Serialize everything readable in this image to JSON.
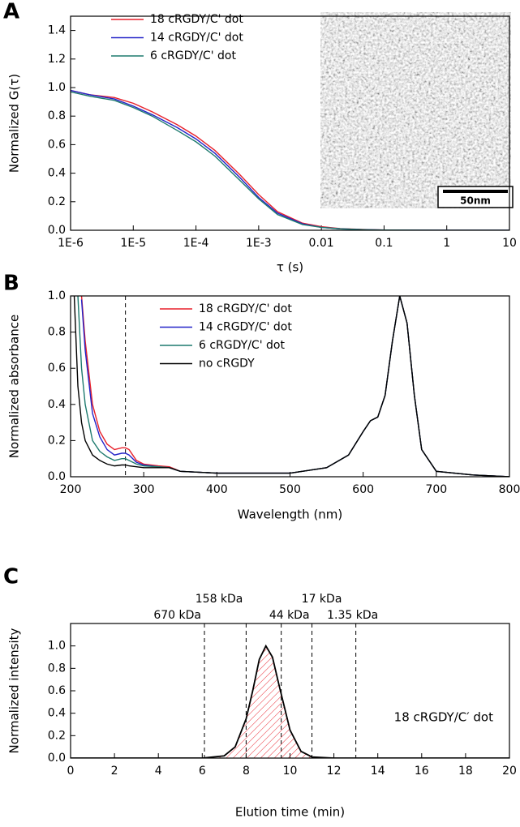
{
  "chart_data": [
    {
      "type": "line",
      "panel_label": "A",
      "ylabel": "Normalized G(τ)",
      "xlabel": "τ (s)",
      "xscale": "log",
      "xlim": [
        1e-06,
        10
      ],
      "xticks": [
        {
          "value": 1e-06,
          "label": "1E-6"
        },
        {
          "value": 1e-05,
          "label": "1E-5"
        },
        {
          "value": 0.0001,
          "label": "1E-4"
        },
        {
          "value": 0.001,
          "label": "1E-3"
        },
        0.01,
        0.1,
        1,
        10
      ],
      "ylim": [
        0,
        1.5
      ],
      "yticks": [
        {
          "value": 0,
          "label": "0.0"
        },
        0.2,
        0.4,
        0.6,
        0.8,
        {
          "value": 1,
          "label": "1.0"
        },
        1.2,
        1.4
      ],
      "legend": "upper left",
      "inset_scale_label": "50nm",
      "x": [
        1e-06,
        2e-06,
        5e-06,
        1e-05,
        2e-05,
        5e-05,
        0.0001,
        0.0002,
        0.0005,
        0.001,
        0.002,
        0.005,
        0.01,
        0.02,
        0.05,
        0.1,
        1,
        10
      ],
      "series": [
        {
          "name": "18 cRGDY/C' dot",
          "color": "#e8212b",
          "values": [
            0.98,
            0.95,
            0.93,
            0.89,
            0.83,
            0.74,
            0.66,
            0.56,
            0.39,
            0.25,
            0.13,
            0.05,
            0.025,
            0.012,
            0.005,
            0.002,
            0,
            0
          ]
        },
        {
          "name": "14 cRGDY/C' dot",
          "color": "#2323c8",
          "values": [
            0.98,
            0.95,
            0.92,
            0.87,
            0.81,
            0.72,
            0.64,
            0.54,
            0.37,
            0.23,
            0.12,
            0.045,
            0.02,
            0.01,
            0.004,
            0.002,
            0,
            0
          ]
        },
        {
          "name": "6 cRGDY/C' dot",
          "color": "#1d7a6e",
          "values": [
            0.97,
            0.94,
            0.91,
            0.86,
            0.8,
            0.7,
            0.62,
            0.52,
            0.35,
            0.22,
            0.11,
            0.04,
            0.02,
            0.01,
            0.004,
            0.002,
            0,
            0
          ]
        }
      ]
    },
    {
      "type": "line",
      "panel_label": "B",
      "ylabel": "Normalized absorbance",
      "xlabel": "Wavelength (nm)",
      "xlim": [
        200,
        800
      ],
      "xticks": [
        200,
        300,
        400,
        500,
        600,
        700,
        800
      ],
      "ylim": [
        0,
        1
      ],
      "yticks": [
        {
          "value": 0,
          "label": "0.0"
        },
        0.2,
        0.4,
        0.6,
        0.8,
        {
          "value": 1,
          "label": "1.0"
        }
      ],
      "legend": "upper center",
      "reference_lines": [
        {
          "x": 275
        }
      ],
      "x": [
        205,
        210,
        215,
        220,
        230,
        240,
        250,
        260,
        270,
        275,
        280,
        290,
        300,
        320,
        335,
        350,
        400,
        450,
        500,
        550,
        580,
        600,
        610,
        620,
        630,
        640,
        650,
        660,
        670,
        680,
        700,
        750,
        800
      ],
      "series": [
        {
          "name": "18 cRGDY/C' dot",
          "color": "#e8212b",
          "values": [
            null,
            null,
            1.0,
            0.75,
            0.4,
            0.25,
            0.18,
            0.15,
            0.16,
            0.16,
            0.15,
            0.09,
            0.07,
            0.06,
            0.055,
            0.03,
            0.02,
            0.02,
            0.02,
            0.05,
            0.12,
            0.25,
            0.31,
            0.33,
            0.45,
            0.75,
            1.0,
            0.85,
            0.45,
            0.15,
            0.03,
            0.01,
            0
          ]
        },
        {
          "name": "14 cRGDY/C' dot",
          "color": "#2323c8",
          "values": [
            null,
            null,
            0.98,
            0.7,
            0.35,
            0.22,
            0.15,
            0.12,
            0.13,
            0.13,
            0.12,
            0.08,
            0.065,
            0.055,
            0.05,
            0.03,
            0.02,
            0.02,
            0.02,
            0.05,
            0.12,
            0.25,
            0.31,
            0.33,
            0.45,
            0.75,
            1.0,
            0.85,
            0.45,
            0.15,
            0.03,
            0.01,
            0
          ]
        },
        {
          "name": "6 cRGDY/C' dot",
          "color": "#1d7a6e",
          "values": [
            null,
            1.0,
            0.6,
            0.4,
            0.2,
            0.14,
            0.11,
            0.09,
            0.1,
            0.1,
            0.09,
            0.07,
            0.06,
            0.055,
            0.05,
            0.03,
            0.02,
            0.02,
            0.02,
            0.05,
            0.12,
            0.25,
            0.31,
            0.33,
            0.45,
            0.75,
            1.0,
            0.85,
            0.45,
            0.15,
            0.03,
            0.01,
            0
          ]
        },
        {
          "name": "no cRGDY",
          "color": "#000000",
          "values": [
            1.0,
            0.5,
            0.3,
            0.2,
            0.12,
            0.09,
            0.07,
            0.06,
            0.065,
            0.065,
            0.06,
            0.055,
            0.05,
            0.05,
            0.05,
            0.03,
            0.02,
            0.02,
            0.02,
            0.05,
            0.12,
            0.25,
            0.31,
            0.33,
            0.45,
            0.75,
            1.0,
            0.85,
            0.45,
            0.15,
            0.03,
            0.01,
            0
          ]
        }
      ]
    },
    {
      "type": "area",
      "panel_label": "C",
      "ylabel": "Normalized intensity",
      "xlabel": "Elution time (min)",
      "xlim": [
        0,
        20
      ],
      "xticks": [
        0,
        2,
        4,
        6,
        8,
        10,
        12,
        14,
        16,
        18,
        20
      ],
      "ylim": [
        0,
        1.2
      ],
      "yticks": [
        {
          "value": 0,
          "label": "0.0"
        },
        0.2,
        0.4,
        0.6,
        0.8,
        {
          "value": 1,
          "label": "1.0"
        }
      ],
      "annotation": "18 cRGDY/C′ dot",
      "color": "#000000",
      "fill_color": "#e8212b",
      "reference_lines": [
        {
          "x": 6.1,
          "label": "670 kDa"
        },
        {
          "x": 8.0,
          "label": "158 kDa"
        },
        {
          "x": 9.6,
          "label": "44 kDa"
        },
        {
          "x": 11.0,
          "label": "17 kDa"
        },
        {
          "x": 13.0,
          "label": "1.35 kDa"
        }
      ],
      "x": [
        0,
        5,
        6,
        7,
        7.5,
        8,
        8.3,
        8.6,
        8.9,
        9.2,
        9.5,
        10,
        10.5,
        11,
        12,
        15,
        20
      ],
      "values": [
        0,
        0,
        0,
        0.02,
        0.1,
        0.35,
        0.6,
        0.88,
        1.0,
        0.9,
        0.65,
        0.25,
        0.06,
        0.01,
        0,
        0,
        0
      ]
    }
  ]
}
